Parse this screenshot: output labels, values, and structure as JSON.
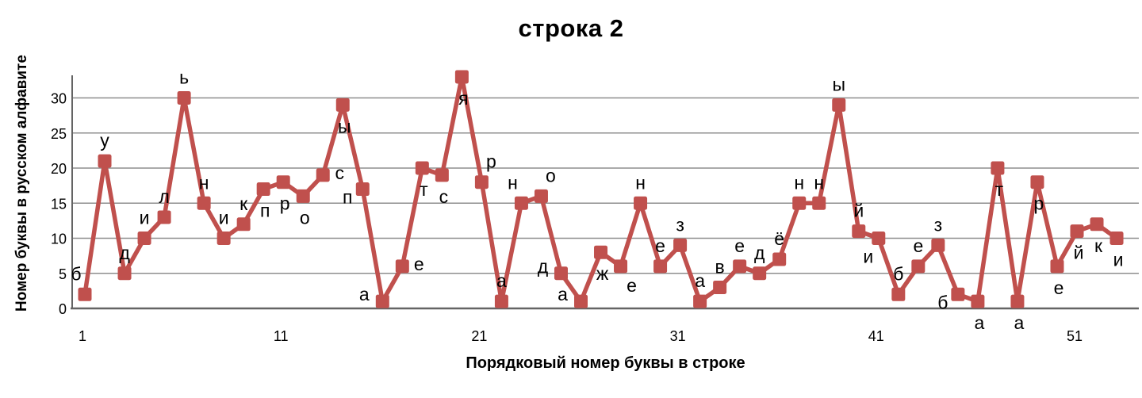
{
  "chart_data": {
    "type": "line",
    "title": "строка 2",
    "xlabel": "Порядковый номер буквы в строке",
    "ylabel": "Номер буквы в русском алфавите",
    "x": [
      1,
      2,
      3,
      4,
      5,
      6,
      7,
      8,
      9,
      10,
      11,
      12,
      13,
      14,
      15,
      16,
      17,
      18,
      19,
      20,
      21,
      22,
      23,
      24,
      25,
      26,
      27,
      28,
      29,
      30,
      31,
      32,
      33,
      34,
      35,
      36,
      37,
      38,
      39,
      40,
      41,
      42,
      43,
      44,
      45,
      46,
      47,
      48,
      49,
      50,
      51,
      52,
      53
    ],
    "letters": [
      "б",
      "у",
      "д",
      "и",
      "л",
      "ь",
      "н",
      "и",
      "к",
      "п",
      "р",
      "о",
      "с",
      "ы",
      "п",
      "а",
      "е",
      "т",
      "с",
      "я",
      "р",
      "а",
      "н",
      "о",
      "д",
      "а",
      "ж",
      "е",
      "н",
      "е",
      "з",
      "а",
      "в",
      "е",
      "д",
      "ё",
      "н",
      "н",
      "ы",
      "й",
      "и",
      "б",
      "е",
      "з",
      "б",
      "а",
      "т",
      "а",
      "р",
      "е",
      "й",
      "к",
      "и"
    ],
    "values": [
      2,
      21,
      5,
      10,
      13,
      30,
      15,
      10,
      12,
      17,
      18,
      16,
      19,
      29,
      17,
      1,
      6,
      20,
      19,
      33,
      18,
      1,
      15,
      16,
      5,
      1,
      8,
      6,
      15,
      6,
      9,
      1,
      3,
      6,
      5,
      7,
      15,
      15,
      29,
      11,
      10,
      2,
      6,
      9,
      2,
      1,
      20,
      1,
      18,
      6,
      11,
      12,
      10
    ],
    "label_positions": [
      "al",
      "a",
      "a",
      "a",
      "a",
      "a",
      "a",
      "a",
      "a",
      "b",
      "b",
      "b",
      "r",
      "b",
      "lb",
      "l",
      "r",
      "b",
      "b",
      "b",
      "ar",
      "a",
      "al",
      "ar",
      "l",
      "l",
      "b",
      "br",
      "a",
      "a",
      "a",
      "a",
      "a",
      "a",
      "a",
      "a",
      "a",
      "a",
      "a",
      "a",
      "bl",
      "a",
      "a",
      "a",
      "lb",
      "b",
      "b",
      "b",
      "b",
      "b",
      "b",
      "b",
      "b"
    ],
    "x_ticks": [
      1,
      11,
      21,
      31,
      41,
      51
    ],
    "y_ticks": [
      0,
      5,
      10,
      15,
      20,
      25,
      30
    ],
    "ylim": [
      0,
      33
    ],
    "grid": true,
    "legend_position": "none",
    "line_color": "#C0504D",
    "marker": "square",
    "grid_color": "#8E8E8E",
    "axis_color": "#646464",
    "text_color": "#000000"
  }
}
